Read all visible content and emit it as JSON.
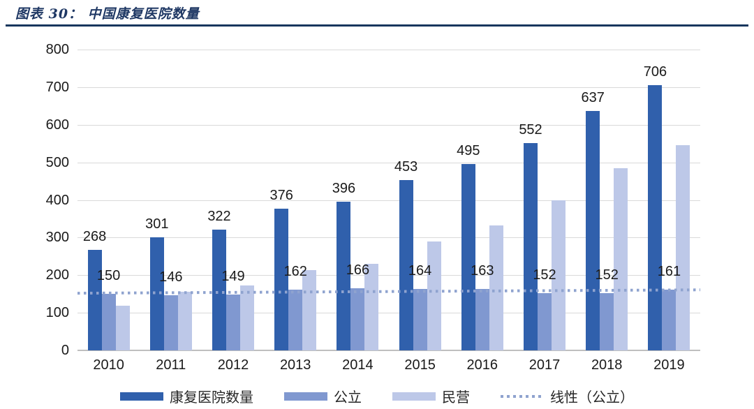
{
  "header": {
    "title": "图表 30：  中国康复医院数量"
  },
  "colors": {
    "title_text": "#1F3864",
    "title_rule": "#17365D",
    "gridline": "#D9D9D9",
    "axis_line": "#BFBFBF",
    "label_text": "#1A1A1A"
  },
  "chart_data": {
    "type": "bar",
    "title": "中国康复医院数量",
    "categories": [
      "2010",
      "2011",
      "2012",
      "2013",
      "2014",
      "2015",
      "2016",
      "2017",
      "2018",
      "2019"
    ],
    "series": [
      {
        "key": "total",
        "name": "康复医院数量",
        "color": "#3060AC",
        "show_labels": true,
        "values": [
          268,
          301,
          322,
          376,
          396,
          453,
          495,
          552,
          637,
          706
        ]
      },
      {
        "key": "public",
        "name": "公立",
        "color": "#8098D0",
        "show_labels": true,
        "values": [
          150,
          146,
          149,
          162,
          166,
          164,
          163,
          152,
          152,
          161
        ]
      },
      {
        "key": "private",
        "name": "民营",
        "color": "#BDC8E8",
        "show_labels": false,
        "values": [
          118,
          155,
          173,
          214,
          230,
          289,
          332,
          400,
          485,
          545
        ]
      }
    ],
    "trendline": {
      "key": "trend-public",
      "name": "线性（公立）",
      "color": "#8FA3CF",
      "style": "dotted",
      "start_value": 152,
      "end_value": 161
    },
    "ylim": [
      0,
      800
    ],
    "ytick_step": 100,
    "xlabel": "",
    "ylabel": "",
    "grid": true,
    "legend_position": "bottom"
  }
}
